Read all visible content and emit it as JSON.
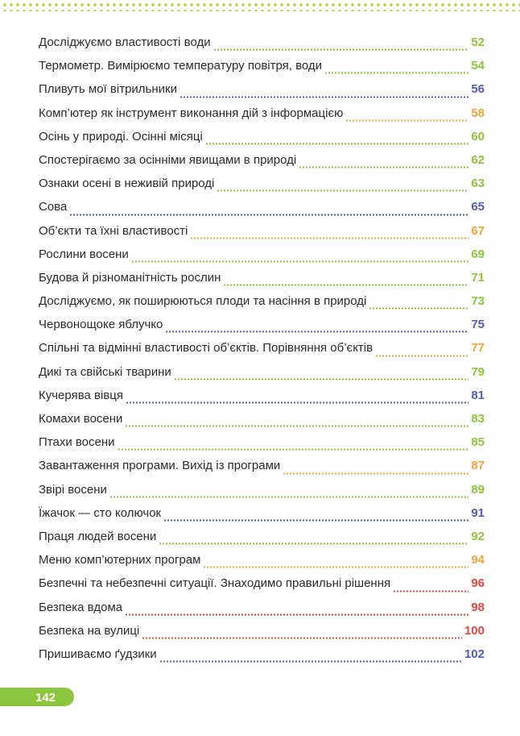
{
  "colors": {
    "green": "#8cc63f",
    "blue": "#4f5fb3",
    "orange": "#f3a53b",
    "red": "#e8463c",
    "text": "#2b2b2b"
  },
  "entries": [
    {
      "title": "Досліджуємо властивості води",
      "page": "52",
      "color": "#8cc63f"
    },
    {
      "title": "Термометр. Вимірюємо температуру повітря, води",
      "page": "54",
      "color": "#8cc63f"
    },
    {
      "title": "Пливуть мої вітрильники",
      "page": "56",
      "color": "#4f5fb3"
    },
    {
      "title": "Комп’ютер як інструмент виконання дій з інформацією",
      "page": "58",
      "color": "#f3a53b"
    },
    {
      "title": "Осінь у природі. Осінні місяці",
      "page": "60",
      "color": "#8cc63f"
    },
    {
      "title": "Спостерігаємо за осінніми явищами в природі",
      "page": "62",
      "color": "#8cc63f"
    },
    {
      "title": "Ознаки осені в неживій природі",
      "page": "63",
      "color": "#8cc63f"
    },
    {
      "title": "Сова",
      "page": "65",
      "color": "#4f5fb3"
    },
    {
      "title": "Об’єкти та їхні властивості",
      "page": "67",
      "color": "#f3a53b"
    },
    {
      "title": "Рослини восени",
      "page": "69",
      "color": "#8cc63f"
    },
    {
      "title": "Будова й різноманітність рослин",
      "page": "71",
      "color": "#8cc63f"
    },
    {
      "title": "Досліджуємо, як поширюються плоди та насіння в природі",
      "page": "73",
      "color": "#8cc63f"
    },
    {
      "title": "Червонощоке яблучко",
      "page": "75",
      "color": "#4f5fb3"
    },
    {
      "title": "Спільні та відмінні властивості об’єктів. Порівняння об’єктів",
      "page": "77",
      "color": "#f3a53b"
    },
    {
      "title": "Дикі та свійські тварини",
      "page": "79",
      "color": "#8cc63f"
    },
    {
      "title": "Кучерява вівця",
      "page": "81",
      "color": "#4f5fb3"
    },
    {
      "title": "Комахи восени",
      "page": "83",
      "color": "#8cc63f"
    },
    {
      "title": "Птахи восени",
      "page": "85",
      "color": "#8cc63f"
    },
    {
      "title": "Завантаження програми. Вихід із програми",
      "page": "87",
      "color": "#f3a53b"
    },
    {
      "title": "Звірі восени",
      "page": "89",
      "color": "#8cc63f"
    },
    {
      "title": "Їжачок — сто колючок",
      "page": "91",
      "color": "#4f5fb3"
    },
    {
      "title": "Праця людей восени",
      "page": "92",
      "color": "#8cc63f"
    },
    {
      "title": "Меню комп’ютерних програм",
      "page": "94",
      "color": "#f3a53b"
    },
    {
      "title": "Безпечні та небезпечні ситуації. Знаходимо правильні рішення",
      "page": "96",
      "color": "#e8463c"
    },
    {
      "title": "Безпека вдома",
      "page": "98",
      "color": "#e8463c"
    },
    {
      "title": "Безпека на вулиці",
      "page": "100",
      "color": "#e8463c"
    },
    {
      "title": "Пришиваємо ґудзики",
      "page": "102",
      "color": "#4f5fb3"
    }
  ],
  "footer": {
    "page_number": "142"
  }
}
